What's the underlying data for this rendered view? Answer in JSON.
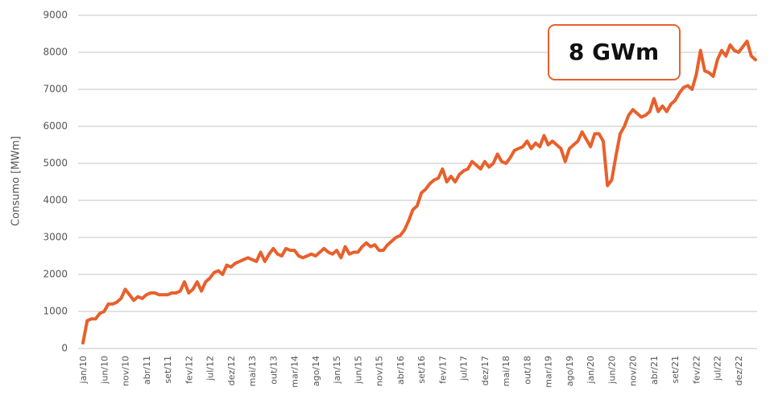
{
  "chart_data": {
    "type": "line",
    "y_label": "Consumo [MWm]",
    "annotation": "8 GWm",
    "color": "#e8602c",
    "grid": true,
    "ylim": [
      0,
      9000
    ],
    "yticks": [
      0,
      1000,
      2000,
      3000,
      4000,
      5000,
      6000,
      7000,
      8000,
      9000
    ],
    "categories": [
      "jan/10",
      null,
      null,
      null,
      null,
      "jun/10",
      null,
      null,
      null,
      null,
      "nov/10",
      null,
      null,
      null,
      null,
      "abr/11",
      null,
      null,
      null,
      null,
      "set/11",
      null,
      null,
      null,
      null,
      "fev/12",
      null,
      null,
      null,
      null,
      "jul/12",
      null,
      null,
      null,
      null,
      "dez/12",
      null,
      null,
      null,
      null,
      "mai/13",
      null,
      null,
      null,
      null,
      "out/13",
      null,
      null,
      null,
      null,
      "mar/14",
      null,
      null,
      null,
      null,
      "ago/14",
      null,
      null,
      null,
      null,
      "jan/15",
      null,
      null,
      null,
      null,
      "jun/15",
      null,
      null,
      null,
      null,
      "nov/15",
      null,
      null,
      null,
      null,
      "abr/16",
      null,
      null,
      null,
      null,
      "set/16",
      null,
      null,
      null,
      null,
      "fev/17",
      null,
      null,
      null,
      null,
      "jul/17",
      null,
      null,
      null,
      null,
      "dez/17",
      null,
      null,
      null,
      null,
      "mai/18",
      null,
      null,
      null,
      null,
      "out/18",
      null,
      null,
      null,
      null,
      "mar/19",
      null,
      null,
      null,
      null,
      "ago/19",
      null,
      null,
      null,
      null,
      "jan/20",
      null,
      null,
      null,
      null,
      "jun/20",
      null,
      null,
      null,
      null,
      "nov/20",
      null,
      null,
      null,
      null,
      "abr/21",
      null,
      null,
      null,
      null,
      "set/21",
      null,
      null,
      null,
      null,
      "fev/22",
      null,
      null,
      null,
      null,
      "jul/22",
      null,
      null,
      null,
      null,
      "dez/22",
      null,
      null,
      null,
      null
    ],
    "values": [
      150,
      750,
      800,
      800,
      950,
      1000,
      1200,
      1200,
      1250,
      1350,
      1600,
      1450,
      1300,
      1400,
      1350,
      1450,
      1500,
      1500,
      1450,
      1450,
      1450,
      1500,
      1500,
      1550,
      1800,
      1500,
      1600,
      1800,
      1550,
      1800,
      1900,
      2050,
      2100,
      2000,
      2250,
      2200,
      2300,
      2350,
      2400,
      2450,
      2400,
      2350,
      2600,
      2350,
      2550,
      2700,
      2550,
      2500,
      2700,
      2650,
      2650,
      2500,
      2450,
      2500,
      2550,
      2500,
      2600,
      2700,
      2600,
      2550,
      2650,
      2450,
      2750,
      2550,
      2600,
      2600,
      2750,
      2850,
      2750,
      2800,
      2650,
      2650,
      2800,
      2900,
      3000,
      3050,
      3200,
      3450,
      3750,
      3850,
      4200,
      4300,
      4450,
      4550,
      4600,
      4850,
      4500,
      4650,
      4500,
      4700,
      4800,
      4850,
      5050,
      4950,
      4850,
      5050,
      4900,
      5000,
      5250,
      5050,
      5000,
      5150,
      5350,
      5400,
      5450,
      5600,
      5400,
      5550,
      5450,
      5750,
      5500,
      5600,
      5500,
      5400,
      5050,
      5400,
      5500,
      5600,
      5850,
      5650,
      5450,
      5800,
      5800,
      5600,
      4400,
      4550,
      5200,
      5800,
      6000,
      6300,
      6450,
      6350,
      6250,
      6300,
      6400,
      6750,
      6400,
      6550,
      6400,
      6600,
      6700,
      6900,
      7050,
      7100,
      7000,
      7400,
      8050,
      7500,
      7450,
      7350,
      7800,
      8050,
      7900,
      8200,
      8050,
      8000,
      8150,
      8300,
      7900,
      7800
    ]
  }
}
